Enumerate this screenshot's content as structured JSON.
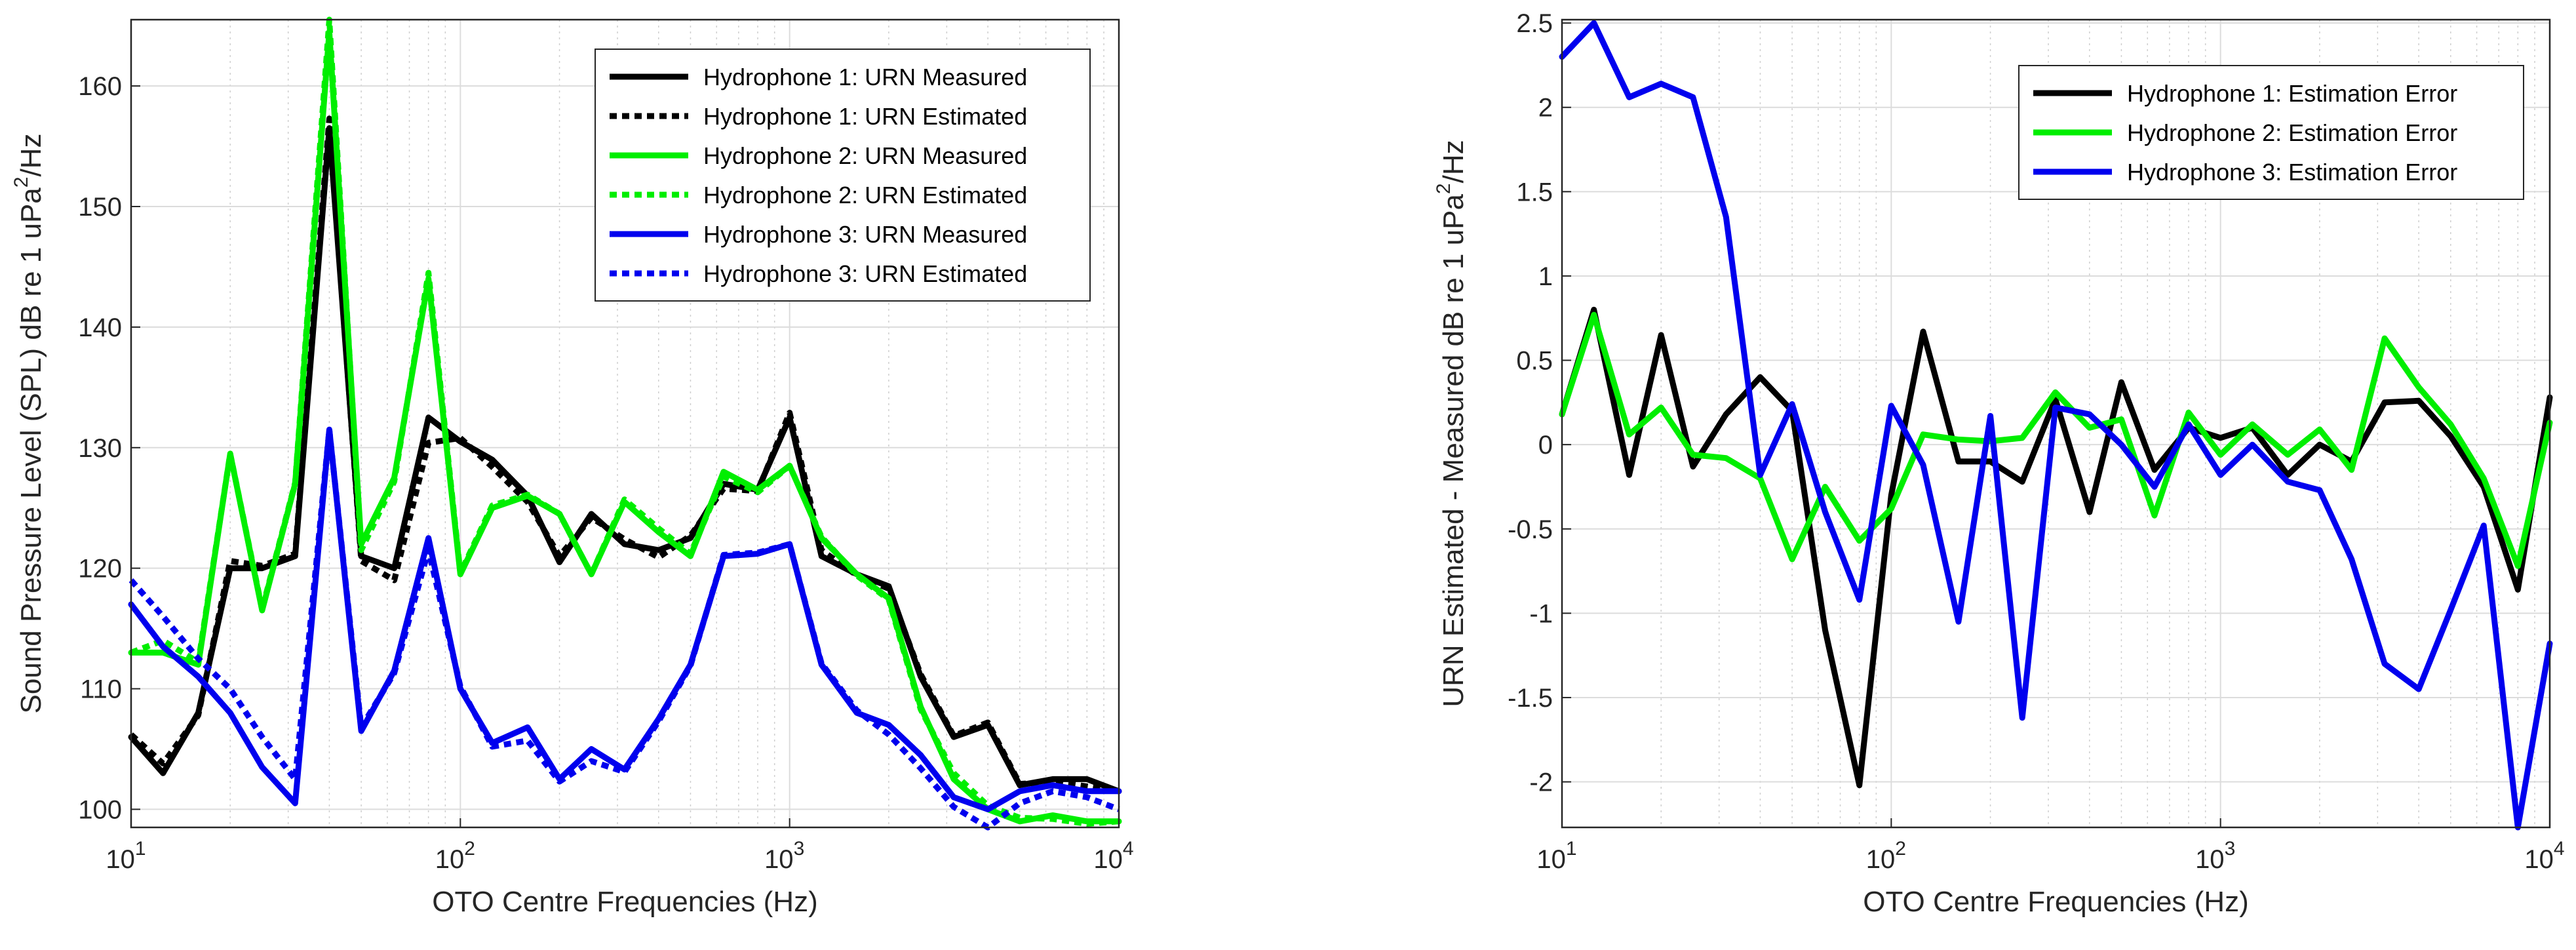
{
  "chart_data": [
    {
      "type": "line",
      "xscale": "log",
      "xlim": [
        10,
        10000
      ],
      "ylim": [
        98.5,
        165.5
      ],
      "xlabel": "OTO Centre Frequencies (Hz)",
      "ylabel": "Sound Pressure Level (SPL) dB re 1 uPa",
      "ylabel_sup": "2",
      "ylabel_suffix": "/Hz",
      "x_ticks": [
        {
          "base": "10",
          "exp": "1"
        },
        {
          "base": "10",
          "exp": "2"
        },
        {
          "base": "10",
          "exp": "3"
        },
        {
          "base": "10",
          "exp": "4"
        }
      ],
      "y_ticks": [
        "100",
        "110",
        "120",
        "130",
        "140",
        "150",
        "160"
      ],
      "legend_position": "top-right",
      "x": [
        10,
        12.5,
        16,
        20,
        25,
        31.5,
        40,
        50,
        63,
        80,
        100,
        125,
        160,
        200,
        250,
        315,
        400,
        500,
        630,
        800,
        1000,
        1250,
        1600,
        2000,
        2500,
        3150,
        4000,
        5000,
        6300,
        8000,
        10000
      ],
      "series": [
        {
          "name": "Hydrophone 1: URN Measured",
          "color": "#000000",
          "dash": "solid",
          "values": [
            106,
            103,
            108,
            120,
            120,
            121,
            156.5,
            121,
            120,
            132.5,
            130.5,
            129,
            126,
            120.5,
            124.5,
            122,
            121.5,
            122.5,
            127,
            126.5,
            132.5,
            121,
            119.5,
            118.5,
            111,
            106,
            107,
            102,
            102.5,
            102.5,
            101.5
          ]
        },
        {
          "name": "Hydrophone 1: URN Estimated",
          "color": "#000000",
          "dash": "dotted",
          "values": [
            106.2,
            103.8,
            107.8,
            120.6,
            120.2,
            121.2,
            157.3,
            120.6,
            119,
            130.4,
            130.8,
            128.4,
            125.5,
            121,
            124.2,
            122.4,
            120.9,
            122.7,
            126.6,
            126.4,
            132.9,
            121.5,
            119.4,
            118.3,
            111.2,
            106.1,
            107.2,
            102.1,
            102.3,
            101.9,
            101.5
          ]
        },
        {
          "name": "Hydrophone 2: URN Measured",
          "color": "#00ee00",
          "dash": "solid",
          "values": [
            113,
            113,
            112,
            129.5,
            116.5,
            127,
            164.5,
            122,
            127.5,
            144,
            119.5,
            125,
            126,
            124.5,
            119.5,
            125.5,
            123,
            121,
            128,
            126.5,
            128.5,
            122.5,
            119.5,
            117.5,
            108.5,
            102.5,
            100,
            99,
            99.5,
            99,
            99
          ]
        },
        {
          "name": "Hydrophone 2: URN Estimated",
          "color": "#00ee00",
          "dash": "dotted",
          "values": [
            113,
            114,
            112.2,
            129.5,
            116.6,
            127.1,
            165.5,
            121.5,
            127.2,
            144.5,
            119.6,
            125.2,
            126.1,
            124.5,
            119.5,
            125.7,
            123.3,
            121.2,
            127.6,
            126.3,
            128.5,
            122.6,
            119.4,
            117.4,
            108.3,
            103,
            100.3,
            99.3,
            99.2,
            98.8,
            99
          ]
        },
        {
          "name": "Hydrophone 3: URN Measured",
          "color": "#0000ee",
          "dash": "solid",
          "values": [
            117,
            113.5,
            111,
            108,
            103.5,
            100.5,
            131.5,
            106.5,
            111.5,
            122.5,
            110,
            105.5,
            106.8,
            102.5,
            105,
            103.3,
            107.5,
            112,
            121,
            121.2,
            122,
            112,
            108,
            107,
            104.5,
            101,
            100,
            101.5,
            102,
            101.5,
            101.5
          ]
        },
        {
          "name": "Hydrophone 3: URN Estimated",
          "color": "#0000ee",
          "dash": "dotted",
          "values": [
            119,
            116,
            112.5,
            110,
            106,
            102.5,
            131.5,
            106.8,
            111.3,
            121.5,
            110.2,
            105.2,
            105.7,
            102.3,
            104,
            103.1,
            107.3,
            111.9,
            121.1,
            121.3,
            122,
            112.1,
            108.2,
            106.2,
            103.4,
            100.2,
            98.5,
            100.5,
            101.5,
            101,
            100
          ]
        }
      ]
    },
    {
      "type": "line",
      "xscale": "log",
      "xlim": [
        10,
        10000
      ],
      "ylim": [
        -2.27,
        2.52
      ],
      "xlabel": "OTO Centre Frequencies (Hz)",
      "ylabel": "URN Estimated - Measured dB re 1 uPa",
      "ylabel_sup": "2",
      "ylabel_suffix": "/Hz",
      "x_ticks": [
        {
          "base": "10",
          "exp": "1"
        },
        {
          "base": "10",
          "exp": "2"
        },
        {
          "base": "10",
          "exp": "3"
        },
        {
          "base": "10",
          "exp": "4"
        }
      ],
      "y_ticks": [
        "-2",
        "-1.5",
        "-1",
        "-0.5",
        "0",
        "0.5",
        "1",
        "1.5",
        "2",
        "2.5"
      ],
      "legend_position": "top-right",
      "x": [
        10,
        12.5,
        16,
        20,
        25,
        31.5,
        40,
        50,
        63,
        80,
        100,
        125,
        160,
        200,
        250,
        315,
        400,
        500,
        630,
        800,
        1000,
        1250,
        1600,
        2000,
        2500,
        3150,
        4000,
        5000,
        6300,
        8000,
        10000
      ],
      "series": [
        {
          "name": "Hydrophone 1: Estimation Error",
          "color": "#000000",
          "dash": "solid",
          "values": [
            0.18,
            0.8,
            -0.18,
            0.65,
            -0.13,
            0.18,
            0.4,
            0.2,
            -1.1,
            -2.02,
            -0.3,
            0.67,
            -0.1,
            -0.1,
            -0.22,
            0.27,
            -0.4,
            0.37,
            -0.15,
            0.1,
            0.04,
            0.1,
            -0.18,
            0,
            -0.1,
            0.25,
            0.26,
            0.05,
            -0.25,
            -0.86,
            0.28
          ]
        },
        {
          "name": "Hydrophone 2: Estimation Error",
          "color": "#00ee00",
          "dash": "solid",
          "values": [
            0.18,
            0.77,
            0.06,
            0.22,
            -0.06,
            -0.08,
            -0.2,
            -0.68,
            -0.25,
            -0.57,
            -0.38,
            0.06,
            0.03,
            0.02,
            0.04,
            0.31,
            0.1,
            0.15,
            -0.42,
            0.19,
            -0.06,
            0.12,
            -0.06,
            0.09,
            -0.15,
            0.63,
            0.34,
            0.12,
            -0.2,
            -0.72,
            0.13
          ]
        },
        {
          "name": "Hydrophone 3: Estimation Error",
          "color": "#0000ee",
          "dash": "solid",
          "values": [
            2.3,
            2.5,
            2.06,
            2.14,
            2.06,
            1.35,
            -0.18,
            0.24,
            -0.4,
            -0.92,
            0.23,
            -0.12,
            -1.05,
            0.17,
            -1.62,
            0.22,
            0.18,
            0,
            -0.25,
            0.12,
            -0.18,
            0,
            -0.22,
            -0.27,
            -0.68,
            -1.3,
            -1.45,
            -0.98,
            -0.48,
            -2.27,
            -1.18
          ]
        }
      ]
    }
  ]
}
